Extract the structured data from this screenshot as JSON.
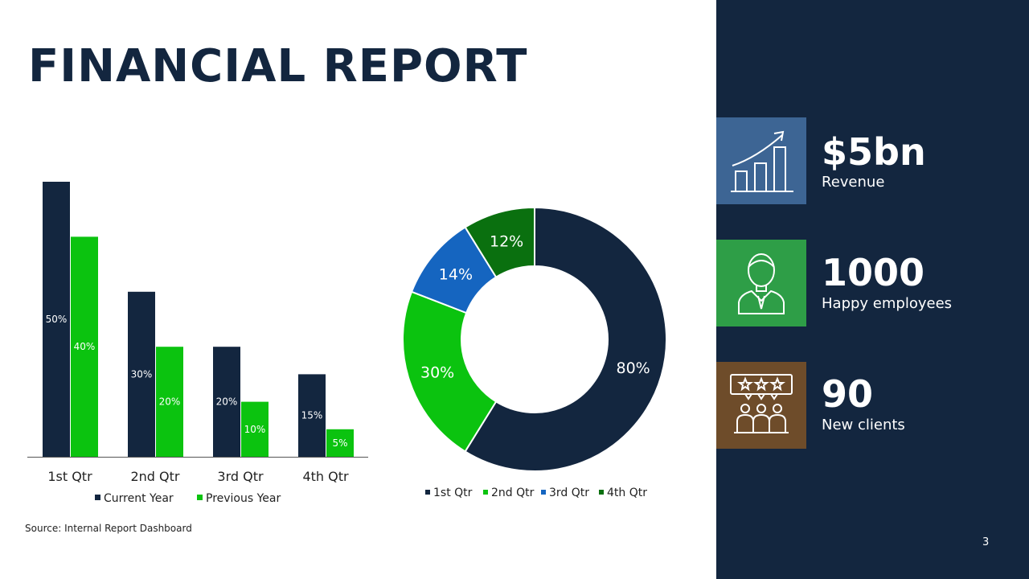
{
  "title": "FINANCIAL REPORT",
  "colors": {
    "navy": "#13263f",
    "green": "#0bc30f",
    "blue": "#1565c0",
    "darkgreen": "#0a700f",
    "icon_blue": "#3d6594",
    "icon_green": "#2e9e47",
    "icon_brown": "#6e4c2a"
  },
  "chart_data": [
    {
      "type": "bar",
      "categories": [
        "1st Qtr",
        "2nd Qtr",
        "3rd Qtr",
        "4th Qtr"
      ],
      "series": [
        {
          "name": "Current Year",
          "values": [
            50,
            30,
            20,
            15
          ],
          "labels": [
            "50%",
            "30%",
            "20%",
            "15%"
          ],
          "color": "#13263f"
        },
        {
          "name": "Previous Year",
          "values": [
            40,
            20,
            10,
            5
          ],
          "labels": [
            "40%",
            "20%",
            "10%",
            "5%"
          ],
          "color": "#0bc30f"
        }
      ],
      "ylim": [
        0,
        50
      ],
      "legend": "bottom"
    },
    {
      "type": "pie",
      "donut": true,
      "categories": [
        "1st Qtr",
        "2nd Qtr",
        "3rd Qtr",
        "4th Qtr"
      ],
      "values": [
        80,
        30,
        14,
        12
      ],
      "labels": [
        "80%",
        "30%",
        "14%",
        "12%"
      ],
      "colors": [
        "#13263f",
        "#0bc30f",
        "#1565c0",
        "#0a700f"
      ],
      "legend": "bottom"
    }
  ],
  "source": "Source: Internal Report Dashboard",
  "stats": [
    {
      "value": "$5bn",
      "label": "Revenue",
      "icon": "growth-chart-icon"
    },
    {
      "value": "1000",
      "label": "Happy employees",
      "icon": "employee-icon"
    },
    {
      "value": "90",
      "label": "New clients",
      "icon": "client-reviews-icon"
    }
  ],
  "page_number": "3"
}
